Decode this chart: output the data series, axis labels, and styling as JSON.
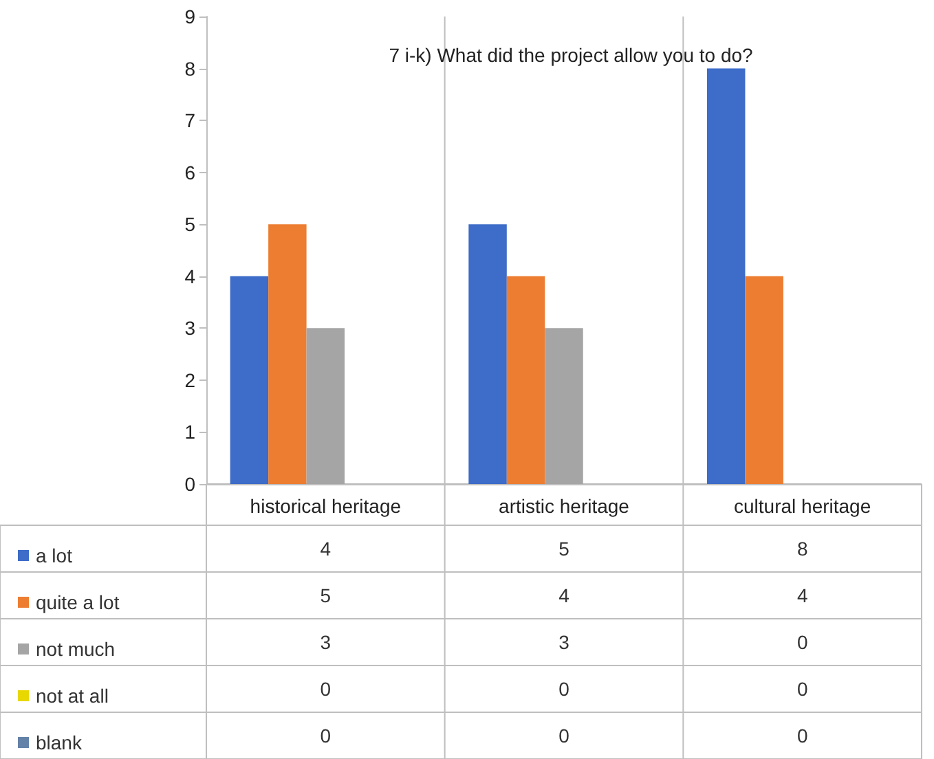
{
  "chart_data": {
    "type": "bar",
    "title": "7 i-k) What did the project allow you to do?",
    "categories": [
      "historical heritage",
      "artistic heritage",
      "cultural heritage"
    ],
    "series": [
      {
        "name": "a lot",
        "color": "#3d6cc9",
        "values": [
          4,
          5,
          8
        ]
      },
      {
        "name": "quite a lot",
        "color": "#ed7d31",
        "values": [
          5,
          4,
          4
        ]
      },
      {
        "name": "not much",
        "color": "#a5a5a5",
        "values": [
          3,
          3,
          0
        ]
      },
      {
        "name": "not at all",
        "color": "#e8d800",
        "values": [
          0,
          0,
          0
        ]
      },
      {
        "name": "blank",
        "color": "#6482a8",
        "values": [
          0,
          0,
          0
        ]
      }
    ],
    "ylim": [
      0,
      9
    ],
    "yticks": [
      0,
      1,
      2,
      3,
      4,
      5,
      6,
      7,
      8,
      9
    ],
    "grid": false,
    "legend": "bottom",
    "data_labels": true
  }
}
